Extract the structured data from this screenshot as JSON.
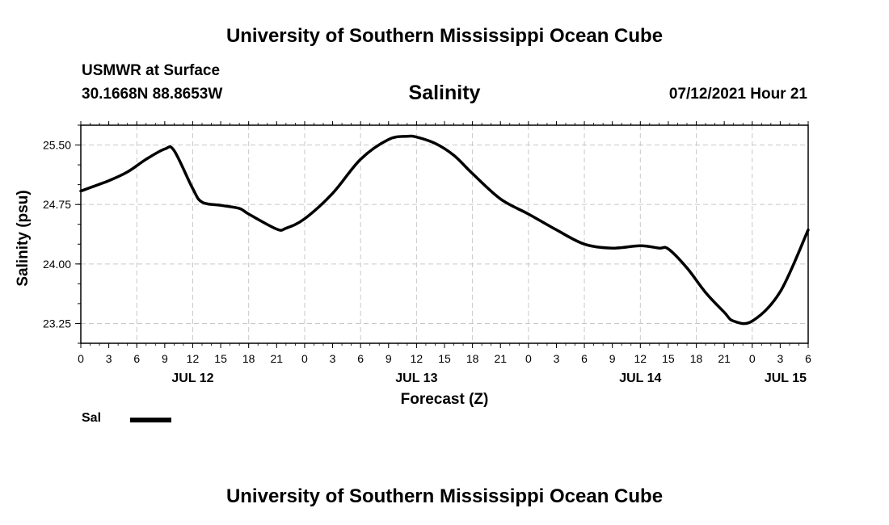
{
  "header": {
    "title": "University of Southern Mississippi Ocean Cube",
    "station": "USMWR at Surface",
    "coords": "30.1668N  88.8653W",
    "chart_title": "Salinity",
    "datetime": "07/12/2021 Hour 21"
  },
  "footer": {
    "title": "University of Southern Mississippi Ocean Cube"
  },
  "legend": {
    "label": "Sal",
    "color": "#000000"
  },
  "chart_data": {
    "type": "line",
    "title": "Salinity",
    "xlabel": "Forecast (Z)",
    "ylabel": "Salinity (psu)",
    "ylim": [
      23.0,
      25.75
    ],
    "y_ticks": [
      "23.25",
      "24.00",
      "24.75",
      "25.50"
    ],
    "x_range_hours": [
      0,
      78
    ],
    "x_tick_labels": [
      "0",
      "3",
      "6",
      "9",
      "12",
      "15",
      "18",
      "21",
      "0",
      "3",
      "6",
      "9",
      "12",
      "15",
      "18",
      "21",
      "0",
      "3",
      "6",
      "9",
      "12",
      "15",
      "18",
      "21",
      "0",
      "3",
      "6"
    ],
    "day_labels": [
      {
        "label": "JUL 12",
        "hour": 12
      },
      {
        "label": "JUL 13",
        "hour": 36
      },
      {
        "label": "JUL 14",
        "hour": 60
      },
      {
        "label": "JUL 15",
        "hour": 78
      }
    ],
    "grid": true,
    "series": [
      {
        "name": "Sal",
        "x": [
          0,
          3,
          5,
          7,
          9,
          10,
          12,
          13,
          15,
          17,
          18,
          21,
          22,
          24,
          27,
          30,
          33,
          35,
          36,
          38,
          40,
          42,
          45,
          48,
          51,
          54,
          57,
          60,
          62,
          63,
          65,
          67,
          69,
          70,
          72,
          75,
          78
        ],
        "y": [
          24.92,
          25.05,
          25.16,
          25.32,
          25.45,
          25.43,
          24.95,
          24.78,
          24.74,
          24.7,
          24.63,
          24.44,
          24.45,
          24.57,
          24.89,
          25.32,
          25.57,
          25.61,
          25.6,
          25.52,
          25.37,
          25.14,
          24.82,
          24.63,
          24.43,
          24.25,
          24.2,
          24.23,
          24.2,
          24.19,
          23.95,
          23.64,
          23.39,
          23.28,
          23.28,
          23.65,
          24.43
        ]
      }
    ]
  }
}
